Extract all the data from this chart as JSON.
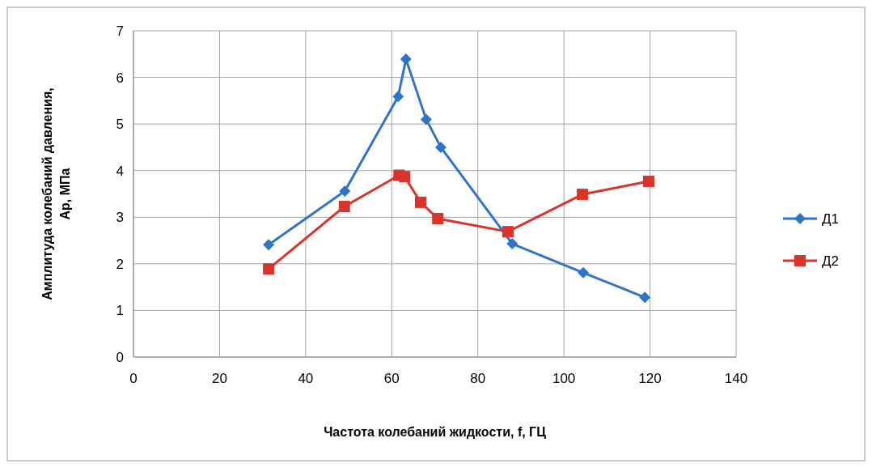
{
  "chart_data": {
    "type": "line",
    "xlabel": "Частота колебаний жидкости, f, ГЦ",
    "ylabel": "Амплитуда колебаний давления, Ар, МПа",
    "xlim": [
      0,
      140
    ],
    "xticks": [
      0,
      20,
      40,
      60,
      80,
      100,
      120,
      140
    ],
    "ylim": [
      0,
      7
    ],
    "yticks": [
      0,
      1,
      2,
      3,
      4,
      5,
      6,
      7
    ],
    "grid": true,
    "legend": "right",
    "series": [
      {
        "name": "Д1",
        "color": "#2e75c9",
        "marker": "diamond",
        "x": [
          31.4,
          49.1,
          61.5,
          63.3,
          68,
          71.4,
          88,
          104.5,
          118.8
        ],
        "values": [
          2.41,
          3.56,
          5.59,
          6.39,
          5.1,
          4.5,
          2.43,
          1.81,
          1.28
        ]
      },
      {
        "name": "Д2",
        "color": "#d9342b",
        "marker": "square",
        "x": [
          31.4,
          49,
          61.7,
          63,
          66.7,
          70.7,
          87,
          104.3,
          119.7
        ],
        "values": [
          1.89,
          3.23,
          3.9,
          3.87,
          3.32,
          2.97,
          2.69,
          3.49,
          3.77
        ]
      }
    ]
  }
}
